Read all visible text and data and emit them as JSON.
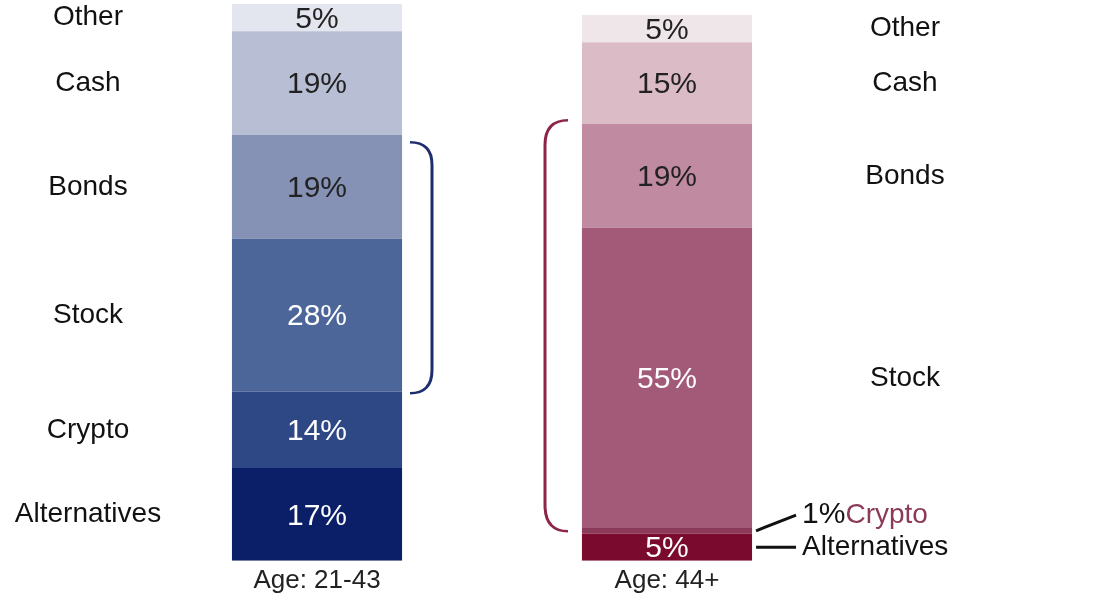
{
  "chart_data": {
    "type": "bar",
    "stacked": true,
    "legend": false,
    "grid": false,
    "tick_labels": "x",
    "categories": [
      "Age: 21-43",
      "Age: 44+"
    ],
    "series": [
      {
        "name": "Alternatives",
        "colors": [
          "#0b1f68",
          "#7a0a2e"
        ],
        "values": [
          17,
          5
        ],
        "value_labels": [
          "17%",
          "5%"
        ]
      },
      {
        "name": "Crypto",
        "colors": [
          "#2e4785",
          "#8c3a5a"
        ],
        "values": [
          14,
          1
        ],
        "value_labels": [
          "14%",
          "1%"
        ]
      },
      {
        "name": "Stock",
        "colors": [
          "#4d6699",
          "#a35a78"
        ],
        "values": [
          28,
          55
        ],
        "value_labels": [
          "28%",
          "55%"
        ]
      },
      {
        "name": "Bonds",
        "colors": [
          "#8591b5",
          "#c08aa0"
        ],
        "values": [
          19,
          19
        ],
        "value_labels": [
          "19%",
          "19%"
        ]
      },
      {
        "name": "Cash",
        "colors": [
          "#b8bed4",
          "#dbbcc6"
        ],
        "values": [
          19,
          15
        ],
        "value_labels": [
          "19%",
          "15%"
        ]
      },
      {
        "name": "Other",
        "colors": [
          "#e4e6ef",
          "#efe6ea"
        ],
        "values": [
          5,
          5
        ],
        "value_labels": [
          "5%",
          "5%"
        ]
      }
    ]
  }
}
